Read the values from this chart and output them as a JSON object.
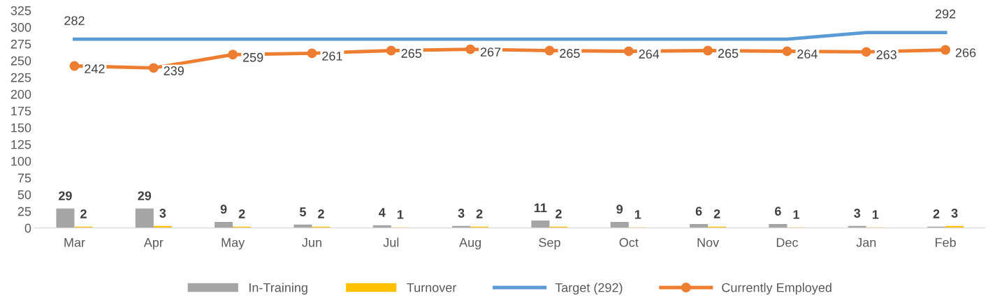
{
  "chart_data": {
    "type": "bar",
    "categories": [
      "Mar",
      "Apr",
      "May",
      "Jun",
      "Jul",
      "Aug",
      "Sep",
      "Oct",
      "Nov",
      "Dec",
      "Jan",
      "Feb"
    ],
    "series": [
      {
        "name": "In-Training",
        "color": "#a5a5a5",
        "values": [
          29,
          29,
          9,
          5,
          4,
          3,
          11,
          9,
          6,
          6,
          3,
          2
        ],
        "data_labels": true
      },
      {
        "name": "Turnover",
        "color": "#ffc000",
        "values": [
          2,
          3,
          2,
          2,
          1,
          2,
          2,
          1,
          2,
          1,
          1,
          3
        ],
        "data_labels": true
      },
      {
        "name": "Target (292)",
        "type": "line",
        "color": "#5b9bd5",
        "marker": "none",
        "values": [
          282,
          282,
          282,
          282,
          282,
          282,
          282,
          282,
          282,
          282,
          292,
          292
        ],
        "value_labels": [
          "282",
          null,
          null,
          null,
          null,
          null,
          null,
          null,
          null,
          null,
          null,
          "292"
        ]
      },
      {
        "name": "Currently Employed",
        "type": "line",
        "color": "#ed7d31",
        "marker": "circle",
        "values": [
          242,
          239,
          259,
          261,
          265,
          267,
          265,
          264,
          265,
          264,
          263,
          266
        ],
        "data_labels": true
      }
    ],
    "ylim": [
      0,
      325
    ],
    "yticks": [
      0,
      25,
      50,
      75,
      100,
      125,
      150,
      175,
      200,
      225,
      250,
      275,
      300,
      325
    ],
    "grid": false,
    "legend": "bottom"
  }
}
